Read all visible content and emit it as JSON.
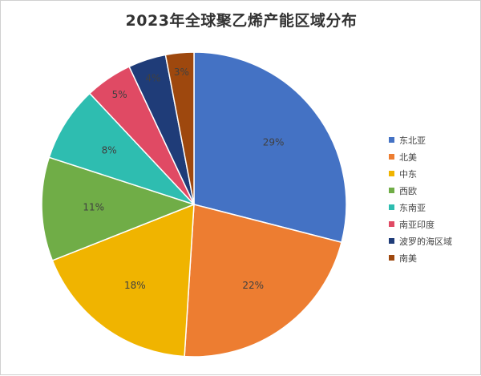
{
  "chart_data": {
    "type": "pie",
    "title": "2023年全球聚乙烯产能区域分布",
    "categories": [
      "东北亚",
      "北美",
      "中东",
      "西欧",
      "东南亚",
      "南亚印度",
      "波罗的海区域",
      "南美"
    ],
    "values": [
      29,
      22,
      18,
      11,
      8,
      5,
      4,
      3
    ],
    "value_labels": [
      "29%",
      "22%",
      "18%",
      "11%",
      "8%",
      "5%",
      "4%",
      "3%"
    ],
    "colors": [
      "#4472C4",
      "#ED7D31",
      "#F0B400",
      "#70AD47",
      "#2EBDB0",
      "#E04A64",
      "#1F3C78",
      "#9E480E"
    ],
    "legend_position": "right"
  }
}
